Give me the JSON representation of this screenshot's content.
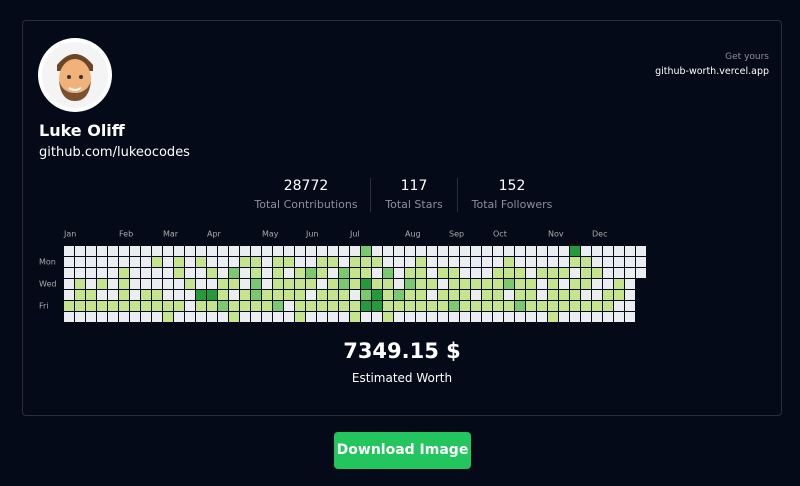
{
  "profile": {
    "name": "Luke Oliff",
    "link": "github.com/lukeocodes"
  },
  "promo": {
    "caption": "Get yours",
    "url": "github-worth.vercel.app"
  },
  "stats": [
    {
      "value": "28772",
      "label": "Total Contributions"
    },
    {
      "value": "117",
      "label": "Total Stars"
    },
    {
      "value": "152",
      "label": "Total Followers"
    }
  ],
  "calendar": {
    "months": [
      "Jan",
      "Feb",
      "Mar",
      "Apr",
      "May",
      "Jun",
      "Jul",
      "Aug",
      "Sep",
      "Oct",
      "Nov",
      "Dec"
    ],
    "days": [
      "Mon",
      "Wed",
      "Fri"
    ],
    "level_colors": [
      "#ebedf0",
      "#c6e48b",
      "#7bc96f",
      "#239a3b",
      "#196127"
    ],
    "levels": [
      [
        0,
        0,
        0,
        0,
        0,
        0,
        0,
        0,
        0,
        0,
        0,
        0,
        0,
        0,
        0,
        0,
        0,
        0,
        0,
        0,
        0,
        0,
        0,
        0,
        0,
        0,
        0,
        2,
        0,
        0,
        0,
        0,
        0,
        0,
        0,
        0,
        0,
        0,
        0,
        0,
        0,
        0,
        0,
        0,
        0,
        0,
        3,
        0,
        0,
        0,
        0,
        0,
        0
      ],
      [
        0,
        0,
        0,
        0,
        0,
        0,
        0,
        0,
        1,
        0,
        1,
        0,
        1,
        0,
        0,
        0,
        1,
        1,
        0,
        1,
        1,
        0,
        0,
        1,
        1,
        0,
        1,
        1,
        1,
        0,
        0,
        0,
        1,
        0,
        0,
        0,
        0,
        0,
        0,
        0,
        1,
        0,
        0,
        0,
        0,
        0,
        1,
        1,
        0,
        0,
        0,
        0,
        0
      ],
      [
        0,
        0,
        0,
        0,
        0,
        1,
        0,
        0,
        0,
        0,
        1,
        0,
        0,
        1,
        0,
        2,
        0,
        1,
        0,
        1,
        0,
        1,
        2,
        1,
        0,
        2,
        1,
        1,
        0,
        2,
        0,
        1,
        1,
        0,
        1,
        1,
        0,
        0,
        0,
        1,
        1,
        1,
        0,
        1,
        1,
        1,
        0,
        1,
        1,
        0,
        0,
        0,
        0
      ],
      [
        0,
        1,
        0,
        1,
        0,
        1,
        0,
        0,
        0,
        0,
        0,
        1,
        0,
        0,
        1,
        1,
        0,
        2,
        0,
        1,
        1,
        1,
        1,
        0,
        1,
        2,
        1,
        3,
        1,
        1,
        0,
        2,
        1,
        1,
        0,
        1,
        1,
        1,
        1,
        1,
        2,
        1,
        1,
        0,
        1,
        0,
        1,
        1,
        0,
        0,
        1,
        0,
        null
      ],
      [
        0,
        1,
        1,
        0,
        0,
        1,
        0,
        1,
        1,
        0,
        0,
        0,
        3,
        3,
        1,
        0,
        1,
        2,
        1,
        1,
        1,
        1,
        0,
        1,
        1,
        1,
        0,
        2,
        3,
        1,
        2,
        1,
        1,
        0,
        1,
        1,
        1,
        0,
        1,
        1,
        0,
        1,
        1,
        0,
        1,
        1,
        1,
        0,
        0,
        1,
        1,
        0,
        null
      ],
      [
        1,
        1,
        1,
        1,
        1,
        1,
        1,
        1,
        1,
        1,
        1,
        0,
        1,
        1,
        2,
        1,
        1,
        1,
        1,
        2,
        0,
        1,
        1,
        1,
        1,
        1,
        1,
        3,
        3,
        1,
        1,
        1,
        1,
        1,
        1,
        2,
        1,
        1,
        1,
        1,
        1,
        2,
        1,
        1,
        1,
        1,
        1,
        1,
        1,
        1,
        0,
        0,
        null
      ],
      [
        0,
        0,
        0,
        0,
        0,
        0,
        0,
        0,
        0,
        1,
        0,
        0,
        0,
        0,
        0,
        1,
        0,
        0,
        0,
        0,
        0,
        1,
        0,
        0,
        0,
        0,
        1,
        0,
        0,
        1,
        0,
        0,
        0,
        0,
        0,
        0,
        0,
        0,
        0,
        0,
        0,
        0,
        0,
        0,
        1,
        0,
        0,
        0,
        0,
        0,
        0,
        0,
        null
      ]
    ]
  },
  "worth": {
    "value": "7349.15 $",
    "label": "Estimated Worth"
  },
  "button": {
    "label": "Download Image"
  }
}
